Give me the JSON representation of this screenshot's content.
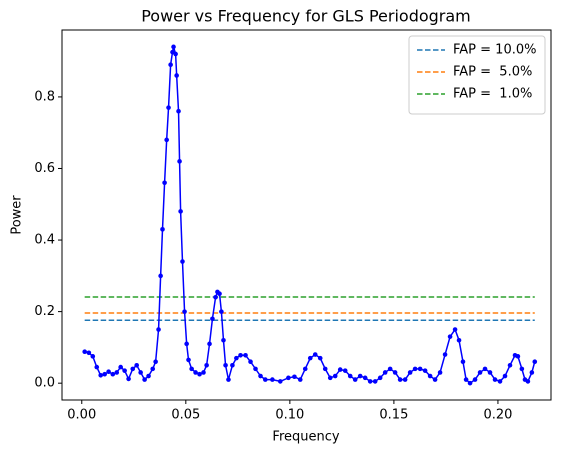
{
  "chart_data": {
    "type": "line",
    "title": "Power vs Frequency for GLS Periodogram",
    "xlabel": "Frequency",
    "ylabel": "Power",
    "x": [
      0.0014,
      0.0034,
      0.0053,
      0.0072,
      0.0091,
      0.011,
      0.0129,
      0.0149,
      0.0168,
      0.0187,
      0.0206,
      0.0225,
      0.0245,
      0.0264,
      0.0283,
      0.0302,
      0.0321,
      0.0341,
      0.0355,
      0.0369,
      0.0379,
      0.0388,
      0.0398,
      0.0408,
      0.0417,
      0.0427,
      0.0436,
      0.0441,
      0.0451,
      0.0456,
      0.0465,
      0.047,
      0.0475,
      0.0484,
      0.0494,
      0.0504,
      0.0513,
      0.0528,
      0.0547,
      0.0566,
      0.0585,
      0.06,
      0.0614,
      0.0628,
      0.0643,
      0.0652,
      0.0662,
      0.0671,
      0.0681,
      0.0691,
      0.0705,
      0.0724,
      0.0743,
      0.0763,
      0.0787,
      0.0811,
      0.0835,
      0.0859,
      0.0882,
      0.0916,
      0.0954,
      0.0993,
      0.1022,
      0.105,
      0.1074,
      0.1098,
      0.1122,
      0.1146,
      0.117,
      0.1194,
      0.1218,
      0.1242,
      0.1266,
      0.129,
      0.1314,
      0.1338,
      0.1362,
      0.1386,
      0.141,
      0.1434,
      0.1458,
      0.1482,
      0.1506,
      0.153,
      0.1554,
      0.1578,
      0.1602,
      0.1626,
      0.165,
      0.1674,
      0.1698,
      0.1722,
      0.1746,
      0.177,
      0.1794,
      0.1813,
      0.1832,
      0.1847,
      0.1866,
      0.189,
      0.1914,
      0.1938,
      0.1962,
      0.1986,
      0.201,
      0.2034,
      0.2058,
      0.2082,
      0.2096,
      0.2115,
      0.213,
      0.2144,
      0.2163,
      0.2177
    ],
    "series": [
      {
        "color": "#0000ff",
        "values": [
          0.088,
          0.085,
          0.075,
          0.045,
          0.022,
          0.025,
          0.032,
          0.025,
          0.03,
          0.045,
          0.035,
          0.012,
          0.04,
          0.05,
          0.03,
          0.01,
          0.02,
          0.04,
          0.06,
          0.15,
          0.3,
          0.43,
          0.56,
          0.68,
          0.77,
          0.89,
          0.925,
          0.94,
          0.92,
          0.86,
          0.76,
          0.62,
          0.48,
          0.34,
          0.2,
          0.11,
          0.065,
          0.04,
          0.03,
          0.025,
          0.03,
          0.05,
          0.11,
          0.18,
          0.24,
          0.255,
          0.25,
          0.2,
          0.12,
          0.05,
          0.01,
          0.05,
          0.07,
          0.078,
          0.078,
          0.06,
          0.04,
          0.02,
          0.01,
          0.01,
          0.005,
          0.015,
          0.018,
          0.01,
          0.04,
          0.07,
          0.08,
          0.07,
          0.04,
          0.015,
          0.02,
          0.038,
          0.035,
          0.02,
          0.01,
          0.02,
          0.015,
          0.005,
          0.005,
          0.015,
          0.03,
          0.04,
          0.03,
          0.01,
          0.01,
          0.03,
          0.04,
          0.04,
          0.035,
          0.02,
          0.01,
          0.03,
          0.08,
          0.13,
          0.15,
          0.12,
          0.06,
          0.01,
          0.0,
          0.01,
          0.03,
          0.04,
          0.03,
          0.01,
          0.005,
          0.02,
          0.05,
          0.078,
          0.075,
          0.04,
          0.01,
          0.005,
          0.03,
          0.06
        ]
      }
    ],
    "hlines": [
      {
        "name": "FAP = 10.0%",
        "color": "#1f77b4",
        "value": 0.176
      },
      {
        "name": "FAP =  5.0%",
        "color": "#ff7f0e",
        "value": 0.196
      },
      {
        "name": "FAP =  1.0%",
        "color": "#2ca02c",
        "value": 0.241
      }
    ],
    "xlim": [
      -0.0095,
      0.2255
    ],
    "ylim": [
      -0.047,
      0.987
    ],
    "xticks": [
      {
        "value": 0,
        "label": "0.00"
      },
      0.05,
      {
        "value": 0.1,
        "label": "0.10"
      },
      0.15,
      {
        "value": 0.2,
        "label": "0.20"
      }
    ],
    "yticks": [
      {
        "value": 0,
        "label": "0.0"
      },
      0.2,
      0.4,
      0.6,
      0.8
    ],
    "legend": "upper right",
    "grid": false
  }
}
